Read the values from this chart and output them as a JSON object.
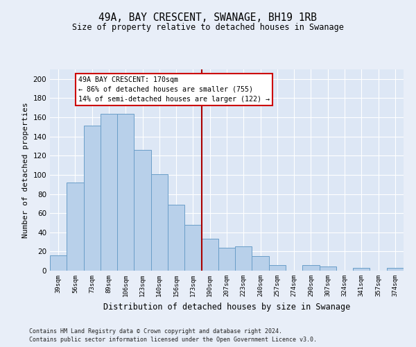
{
  "title": "49A, BAY CRESCENT, SWANAGE, BH19 1RB",
  "subtitle": "Size of property relative to detached houses in Swanage",
  "xlabel": "Distribution of detached houses by size in Swanage",
  "ylabel": "Number of detached properties",
  "categories": [
    "39sqm",
    "56sqm",
    "73sqm",
    "89sqm",
    "106sqm",
    "123sqm",
    "140sqm",
    "156sqm",
    "173sqm",
    "190sqm",
    "207sqm",
    "223sqm",
    "240sqm",
    "257sqm",
    "274sqm",
    "290sqm",
    "307sqm",
    "324sqm",
    "341sqm",
    "357sqm",
    "374sqm"
  ],
  "values": [
    16,
    92,
    151,
    164,
    164,
    126,
    101,
    69,
    48,
    33,
    24,
    25,
    15,
    6,
    0,
    6,
    4,
    0,
    3,
    0,
    3
  ],
  "bar_color": "#b8d0ea",
  "bar_edge_color": "#6a9ec8",
  "fig_facecolor": "#e8eef8",
  "ax_facecolor": "#dde7f5",
  "grid_color": "#ffffff",
  "vline_x_index": 8,
  "vline_color": "#aa0000",
  "annotation_text": "49A BAY CRESCENT: 170sqm\n← 86% of detached houses are smaller (755)\n14% of semi-detached houses are larger (122) →",
  "annotation_box_edgecolor": "#cc0000",
  "ylim": [
    0,
    210
  ],
  "yticks": [
    0,
    20,
    40,
    60,
    80,
    100,
    120,
    140,
    160,
    180,
    200
  ],
  "footer_line1": "Contains HM Land Registry data © Crown copyright and database right 2024.",
  "footer_line2": "Contains public sector information licensed under the Open Government Licence v3.0."
}
